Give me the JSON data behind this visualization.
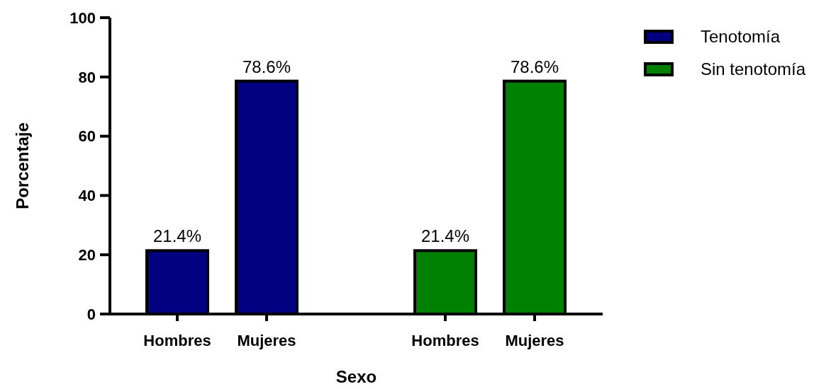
{
  "chart_data": {
    "type": "bar",
    "xlabel": "Sexo",
    "ylabel": "Porcentaje",
    "categories": [
      "Hombres",
      "Mujeres",
      null,
      "Hombres",
      "Mujeres"
    ],
    "series": [
      {
        "name": "Tenotomía",
        "color": "#000080",
        "values": [
          21.4,
          78.6,
          null,
          null,
          null
        ],
        "value_labels": [
          "21.4%",
          "78.6%",
          null,
          null,
          null
        ]
      },
      {
        "name": "Sin tenotomía",
        "color": "#008000",
        "values": [
          null,
          null,
          null,
          21.4,
          78.6
        ],
        "value_labels": [
          null,
          null,
          null,
          "21.4%",
          "78.6%"
        ]
      }
    ],
    "ylim": [
      0,
      100
    ],
    "yticks": [
      0,
      20,
      40,
      60,
      80,
      100
    ],
    "grid": false,
    "legend": "top right"
  }
}
